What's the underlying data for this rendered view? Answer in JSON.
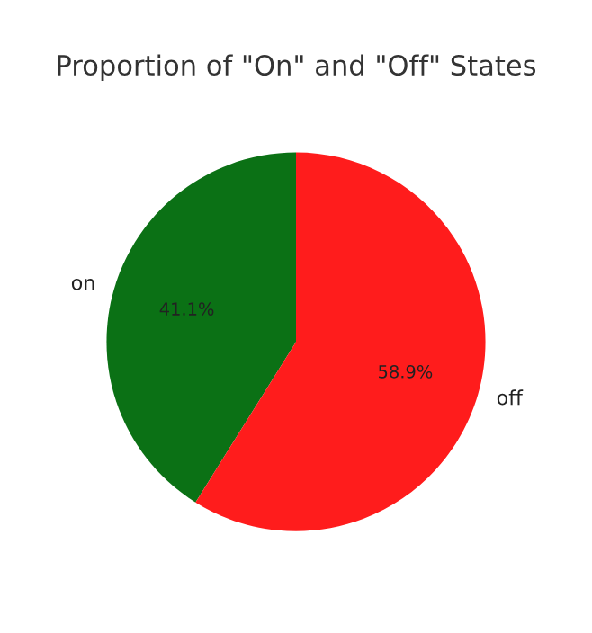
{
  "chart_data": {
    "type": "pie",
    "title": "Proportion of \"On\" and \"Off\" States",
    "categories": [
      "on",
      "off"
    ],
    "values": [
      41.1,
      58.9
    ],
    "colors": [
      "#0b7115",
      "#ff1c1c"
    ],
    "value_labels": [
      "41.1%",
      "58.9%"
    ],
    "legend": false
  }
}
